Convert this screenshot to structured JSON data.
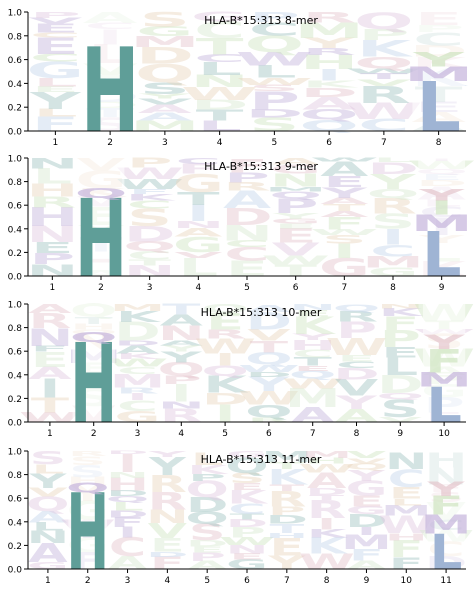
{
  "colors": {
    "H": "#5f9e98",
    "L": "#9fb4d4",
    "faint_palette": [
      "#9fc4c0",
      "#c4b4dc",
      "#cfe4c0",
      "#e4c4cc",
      "#c4d4ec",
      "#e8d4bc",
      "#d8e8d0",
      "#e0c8e0"
    ]
  },
  "chart_data": [
    {
      "type": "sequence-logo",
      "title": "HLA-B*15:313 8-mer",
      "positions": [
        "1",
        "2",
        "3",
        "4",
        "5",
        "6",
        "7",
        "8"
      ],
      "ylim": [
        0,
        1.0
      ],
      "yticks": [
        "0.0",
        "0.2",
        "0.4",
        "0.6",
        "0.8",
        "1.0"
      ],
      "anchors": [
        {
          "position": "2",
          "residues": [
            {
              "letter": "H",
              "height": 0.71
            }
          ]
        },
        {
          "position": "8",
          "residues": [
            {
              "letter": "L",
              "height": 0.42
            },
            {
              "letter": "M",
              "height": 0.12
            },
            {
              "letter": "Y",
              "height": 0.12
            }
          ]
        }
      ]
    },
    {
      "type": "sequence-logo",
      "title": "HLA-B*15:313 9-mer",
      "positions": [
        "1",
        "2",
        "3",
        "4",
        "5",
        "6",
        "7",
        "8",
        "9"
      ],
      "ylim": [
        0,
        1.0
      ],
      "yticks": [
        "0.0",
        "0.2",
        "0.4",
        "0.6",
        "0.8",
        "1.0"
      ],
      "anchors": [
        {
          "position": "2",
          "residues": [
            {
              "letter": "H",
              "height": 0.66
            },
            {
              "letter": "Q",
              "height": 0.08
            }
          ]
        },
        {
          "position": "9",
          "residues": [
            {
              "letter": "L",
              "height": 0.38
            },
            {
              "letter": "M",
              "height": 0.14
            },
            {
              "letter": "I",
              "height": 0.12
            },
            {
              "letter": "Y",
              "height": 0.1
            }
          ]
        }
      ]
    },
    {
      "type": "sequence-logo",
      "title": "HLA-B*15:313 10-mer",
      "positions": [
        "1",
        "2",
        "3",
        "4",
        "5",
        "6",
        "7",
        "8",
        "9",
        "10"
      ],
      "ylim": [
        0,
        1.0
      ],
      "yticks": [
        "0.0",
        "0.2",
        "0.4",
        "0.6",
        "0.8",
        "1.0"
      ],
      "anchors": [
        {
          "position": "2",
          "residues": [
            {
              "letter": "H",
              "height": 0.68
            },
            {
              "letter": "Q",
              "height": 0.08
            }
          ]
        },
        {
          "position": "10",
          "residues": [
            {
              "letter": "L",
              "height": 0.3
            },
            {
              "letter": "M",
              "height": 0.12
            },
            {
              "letter": "F",
              "height": 0.2
            },
            {
              "letter": "Y",
              "height": 0.12
            }
          ]
        }
      ]
    },
    {
      "type": "sequence-logo",
      "title": "HLA-B*15:313 11-mer",
      "positions": [
        "1",
        "2",
        "3",
        "4",
        "5",
        "6",
        "7",
        "8",
        "9",
        "10",
        "11"
      ],
      "ylim": [
        0,
        1.0
      ],
      "yticks": [
        "0.0",
        "0.2",
        "0.4",
        "0.6",
        "0.8",
        "1.0"
      ],
      "anchors": [
        {
          "position": "2",
          "residues": [
            {
              "letter": "H",
              "height": 0.65
            },
            {
              "letter": "Q",
              "height": 0.08
            }
          ]
        },
        {
          "position": "11",
          "residues": [
            {
              "letter": "L",
              "height": 0.3
            },
            {
              "letter": "M",
              "height": 0.16
            },
            {
              "letter": "F",
              "height": 0.16
            },
            {
              "letter": "Y",
              "height": 0.12
            }
          ]
        }
      ]
    }
  ]
}
